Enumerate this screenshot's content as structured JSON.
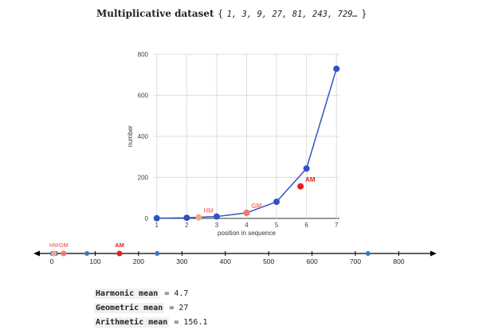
{
  "heading": {
    "title": "Multiplicative dataset",
    "open_brace": "{",
    "sequence_text": "1, 3, 9, 27, 81, 243, 729…",
    "close_brace": "}"
  },
  "chart_data": [
    {
      "type": "line",
      "xlabel": "position in sequence",
      "ylabel": "number",
      "xlim": [
        0.9,
        7.1
      ],
      "ylim": [
        0,
        800
      ],
      "x_ticks": [
        1,
        2,
        3,
        4,
        5,
        6,
        7
      ],
      "y_ticks": [
        0,
        200,
        400,
        600,
        800
      ],
      "grid": true,
      "series": [
        {
          "x": [
            1,
            2,
            3,
            4,
            5,
            6,
            7
          ],
          "values": [
            1,
            3,
            9,
            27,
            81,
            243,
            729
          ],
          "color": "#2d54c4"
        }
      ],
      "markers": [
        {
          "label": "HM",
          "x": 2.4,
          "y": 4.7,
          "color": "#f4a585",
          "label_color": "#f08a8a"
        },
        {
          "label": "GM",
          "x": 4.0,
          "y": 27,
          "color": "#f07c6a",
          "label_color": "#f07c6a"
        },
        {
          "label": "AM",
          "x": 5.8,
          "y": 156.1,
          "color": "#e02020",
          "label_color": "#e02020"
        }
      ]
    },
    {
      "type": "scatter",
      "xlim": [
        -35,
        880
      ],
      "x_ticks": [
        0,
        100,
        200,
        300,
        400,
        500,
        600,
        700,
        800
      ],
      "values": [
        1,
        3,
        9,
        27,
        81,
        243,
        729
      ],
      "point_color": "#3b78b5",
      "markers": [
        {
          "label": "HM",
          "x": 4.7,
          "color": "#f4a585",
          "label_color": "#f08a8a"
        },
        {
          "label": "GM",
          "x": 27,
          "color": "#f07c6a",
          "label_color": "#f07c6a"
        },
        {
          "label": "AM",
          "x": 156.1,
          "color": "#e02020",
          "label_color": "#e02020"
        }
      ]
    }
  ],
  "means": [
    {
      "label": "Harmonic mean",
      "value": "= 4.7"
    },
    {
      "label": "Geometric mean",
      "value": "= 27"
    },
    {
      "label": "Arithmetic mean",
      "value": "= 156.1"
    }
  ]
}
